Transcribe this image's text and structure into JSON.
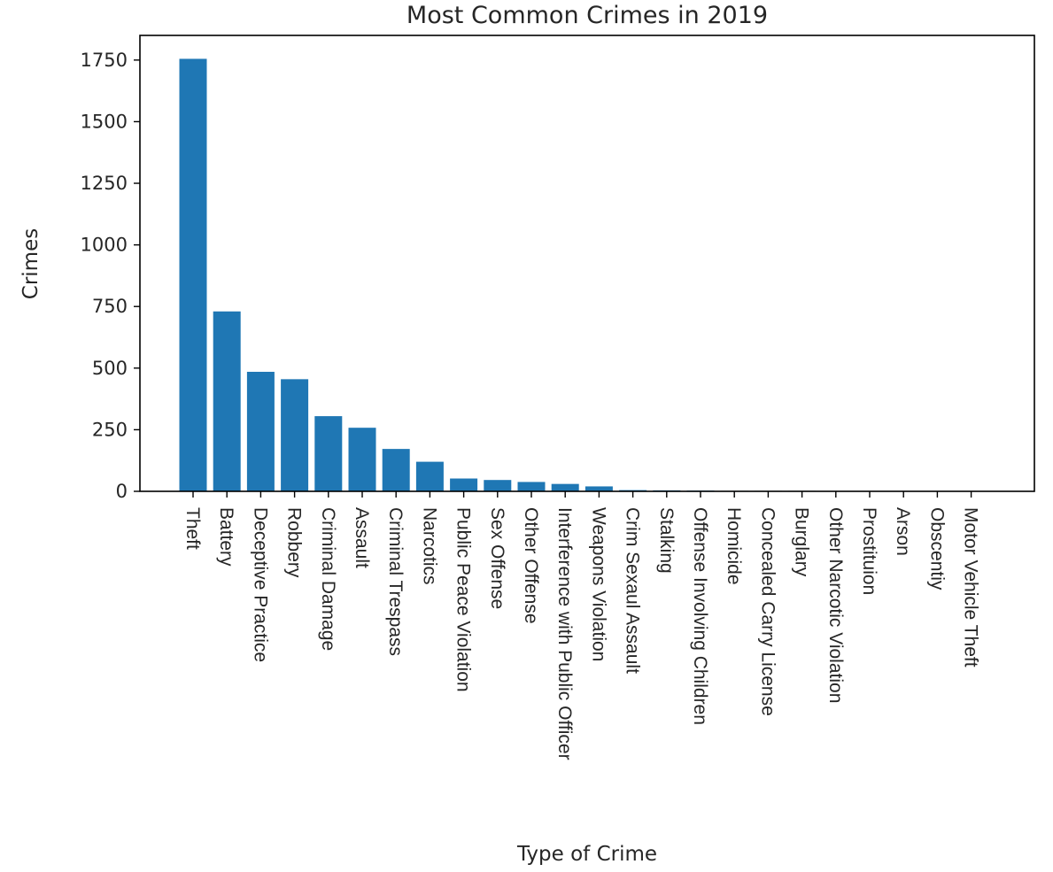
{
  "chart_data": {
    "type": "bar",
    "title": "Most Common Crimes in 2019",
    "xlabel": "Type of Crime",
    "ylabel": "Crimes",
    "ylim": [
      0,
      1850
    ],
    "yticks": [
      0,
      250,
      500,
      750,
      1000,
      1250,
      1500,
      1750
    ],
    "grid": false,
    "bar_color": "#1f77b4",
    "categories": [
      "Theft",
      "Battery",
      "Deceptive Practice",
      "Robbery",
      "Criminal Damage",
      "Assault",
      "Criminal Trespass",
      "Narcotics",
      "Public Peace Violation",
      "Sex Offense",
      "Other Offense",
      "Interference with Public Officer",
      "Weapons Violation",
      "Crim Sexaul Assault",
      "Stalking",
      "Offense Involving Children",
      "Homicide",
      "Concealed Carry License",
      "Burglary",
      "Other Narcotic Violation",
      "Prostituion",
      "Arson",
      "Obscentiy",
      "Motor Vehicle Theft"
    ],
    "values": [
      1755,
      730,
      485,
      455,
      305,
      258,
      172,
      120,
      52,
      46,
      38,
      30,
      20,
      5,
      4,
      3,
      2,
      2,
      2,
      1,
      1,
      1,
      1,
      1
    ]
  }
}
